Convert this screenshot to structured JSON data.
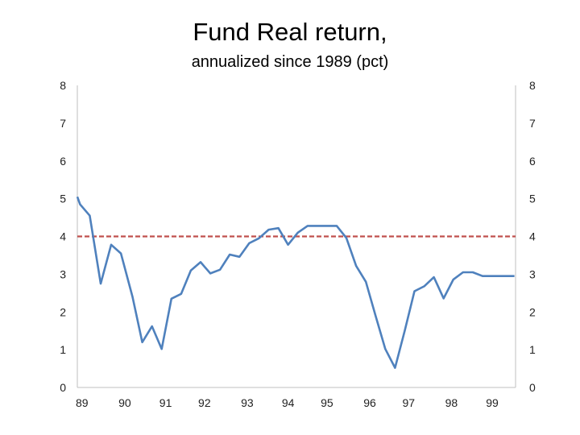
{
  "chart_data": {
    "type": "line",
    "title": "Fund Real return,",
    "subtitle": "annualized since 1989 (pct)",
    "xlabel": "",
    "ylabel": "",
    "ylim": [
      0,
      8
    ],
    "xlim": [
      1988.98,
      2000.25
    ],
    "y_ticks": [
      0,
      1,
      2,
      3,
      4,
      5,
      6,
      7,
      8
    ],
    "y_ticks_right": [
      0,
      1,
      2,
      3,
      4,
      5,
      6,
      7,
      8
    ],
    "x_tick_labels": [
      {
        "label": "89",
        "x": 1989.1
      },
      {
        "label": "90",
        "x": 1990.2
      },
      {
        "label": "91",
        "x": 1991.25
      },
      {
        "label": "92",
        "x": 1992.25
      },
      {
        "label": "93",
        "x": 1993.35
      },
      {
        "label": "94",
        "x": 1994.4
      },
      {
        "label": "95",
        "x": 1995.4
      },
      {
        "label": "96",
        "x": 1996.5
      },
      {
        "label": "97",
        "x": 1997.5
      },
      {
        "label": "98",
        "x": 1998.6
      },
      {
        "label": "99",
        "x": 1999.65
      }
    ],
    "grid": false,
    "series": [
      {
        "color": "#4f81bd",
        "x": [
          1988.98,
          1989.05,
          1989.3,
          1989.58,
          1989.85,
          1990.1,
          1990.4,
          1990.65,
          1990.9,
          1991.15,
          1991.4,
          1991.65,
          1991.9,
          1992.15,
          1992.4,
          1992.65,
          1992.9,
          1993.15,
          1993.4,
          1993.65,
          1993.9,
          1994.15,
          1994.4,
          1994.65,
          1994.9,
          1995.15,
          1995.4,
          1995.65,
          1995.9,
          1996.15,
          1996.4,
          1996.65,
          1996.9,
          1997.15,
          1997.4,
          1997.65,
          1997.9,
          1998.15,
          1998.4,
          1998.65,
          1998.9,
          1999.15,
          1999.4,
          1999.65,
          1999.9,
          2000.22
        ],
        "values": [
          5.05,
          4.85,
          4.55,
          2.75,
          3.78,
          3.55,
          2.4,
          1.2,
          1.62,
          1.02,
          2.35,
          2.48,
          3.1,
          3.32,
          3.02,
          3.12,
          3.52,
          3.46,
          3.82,
          3.95,
          4.18,
          4.22,
          3.78,
          4.1,
          4.28,
          4.28,
          4.28,
          4.28,
          3.96,
          3.22,
          2.8,
          1.9,
          1.02,
          0.52,
          1.5,
          2.55,
          2.68,
          2.92,
          2.36,
          2.86,
          3.05,
          3.05,
          2.95,
          2.95,
          2.95,
          2.95
        ]
      }
    ],
    "reference_line": {
      "value": 4.0,
      "color": "#c0504d",
      "style": "dashed"
    }
  }
}
